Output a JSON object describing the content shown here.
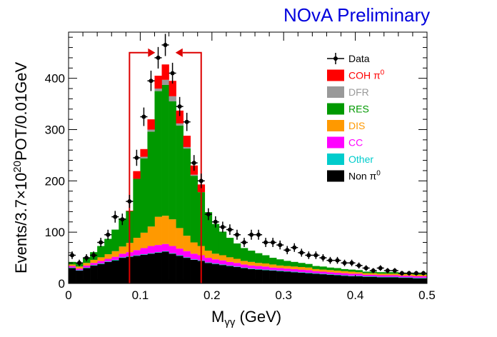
{
  "banner": "NOvA Preliminary",
  "chart_data": {
    "type": "bar",
    "subtype": "stacked_histogram_with_data_points",
    "xlabel": {
      "main": "M",
      "sub": "γγ",
      "units": " (GeV)"
    },
    "ylabel": {
      "pre": "Events/3.7",
      "times": "×",
      "base": "10",
      "exp": "20",
      "post": "POT/0.01GeV"
    },
    "xlim": [
      0,
      0.5
    ],
    "ylim": [
      0,
      490
    ],
    "xticks": [
      0,
      0.1,
      0.2,
      0.3,
      0.4,
      0.5
    ],
    "xtick_labels": [
      "0",
      "0.1",
      "0.2",
      "0.3",
      "0.4",
      "0.5"
    ],
    "yticks": [
      0,
      100,
      200,
      300,
      400
    ],
    "ytick_labels": [
      "0",
      "100",
      "200",
      "300",
      "400"
    ],
    "bin_width": 0.01,
    "bin_low_edges": [
      0,
      0.01,
      0.02,
      0.03,
      0.04,
      0.05,
      0.06,
      0.07,
      0.08,
      0.09,
      0.1,
      0.11,
      0.12,
      0.13,
      0.14,
      0.15,
      0.16,
      0.17,
      0.18,
      0.19,
      0.2,
      0.21,
      0.22,
      0.23,
      0.24,
      0.25,
      0.26,
      0.27,
      0.28,
      0.29,
      0.3,
      0.31,
      0.32,
      0.33,
      0.34,
      0.35,
      0.36,
      0.37,
      0.38,
      0.39,
      0.4,
      0.41,
      0.42,
      0.43,
      0.44,
      0.45,
      0.46,
      0.47,
      0.48,
      0.49
    ],
    "series": [
      {
        "name": "Non π0",
        "label": "Non π",
        "sup": "0",
        "color": "#000000",
        "text_color": "#000000",
        "values": [
          30,
          25,
          30,
          35,
          38,
          42,
          45,
          50,
          52,
          54,
          56,
          58,
          60,
          62,
          58,
          54,
          50,
          46,
          44,
          40,
          38,
          36,
          34,
          32,
          30,
          28,
          27,
          26,
          25,
          24,
          23,
          22,
          21,
          20,
          19,
          18,
          17,
          16,
          15,
          14,
          14,
          13,
          13,
          12,
          12,
          12,
          11,
          11,
          10,
          10
        ]
      },
      {
        "name": "Other",
        "label": "Other",
        "color": "#00cccc",
        "text_color": "#00cccc",
        "values": [
          1,
          1,
          1,
          1,
          1,
          1,
          1,
          1,
          1,
          1,
          1,
          1,
          1,
          1,
          1,
          1,
          1,
          1,
          1,
          1,
          1,
          1,
          1,
          1,
          1,
          1,
          1,
          1,
          1,
          1,
          1,
          1,
          1,
          1,
          1,
          1,
          1,
          1,
          1,
          1,
          1,
          1,
          1,
          1,
          1,
          1,
          1,
          1,
          1,
          1
        ]
      },
      {
        "name": "CC",
        "label": "CC",
        "color": "#ff00ff",
        "text_color": "#ff00ff",
        "values": [
          3,
          3,
          4,
          4,
          5,
          5,
          6,
          7,
          8,
          10,
          12,
          14,
          14,
          14,
          14,
          13,
          12,
          11,
          10,
          9,
          8,
          8,
          7,
          7,
          6,
          6,
          6,
          6,
          5,
          5,
          5,
          5,
          5,
          5,
          4,
          4,
          4,
          4,
          4,
          4,
          4,
          3,
          3,
          3,
          3,
          3,
          3,
          3,
          3,
          3
        ]
      },
      {
        "name": "DIS",
        "label": "DIS",
        "color": "#ff9900",
        "text_color": "#ff9900",
        "values": [
          3,
          4,
          5,
          6,
          7,
          9,
          11,
          14,
          18,
          24,
          30,
          38,
          55,
          55,
          52,
          40,
          30,
          22,
          18,
          14,
          11,
          10,
          9,
          8,
          7,
          7,
          6,
          6,
          6,
          5,
          5,
          5,
          5,
          5,
          4,
          4,
          4,
          4,
          4,
          4,
          3,
          3,
          3,
          3,
          3,
          3,
          3,
          3,
          3,
          3
        ]
      },
      {
        "name": "RES",
        "label": "RES",
        "color": "#009900",
        "text_color": "#009900",
        "values": [
          5,
          7,
          10,
          15,
          22,
          30,
          42,
          55,
          62,
          115,
          145,
          185,
          245,
          255,
          230,
          200,
          170,
          130,
          105,
          75,
          58,
          46,
          38,
          30,
          25,
          22,
          19,
          16,
          13,
          12,
          10,
          9,
          8,
          7,
          6,
          6,
          5,
          5,
          4,
          4,
          4,
          3,
          3,
          3,
          3,
          3,
          3,
          2,
          2,
          2
        ]
      },
      {
        "name": "DFR",
        "label": "DFR",
        "color": "#999999",
        "text_color": "#999999",
        "values": [
          0,
          0,
          0,
          0,
          0,
          0,
          0,
          0,
          0,
          0,
          3,
          4,
          5,
          10,
          10,
          4,
          3,
          2,
          0,
          0,
          0,
          0,
          0,
          0,
          0,
          0,
          0,
          0,
          0,
          0,
          0,
          0,
          0,
          0,
          0,
          0,
          0,
          0,
          0,
          0,
          0,
          0,
          0,
          0,
          0,
          0,
          0,
          0,
          0,
          0
        ]
      },
      {
        "name": "COH π0",
        "label": "COH π",
        "sup": "0",
        "color": "#ff0000",
        "text_color": "#ff0000",
        "values": [
          0,
          0,
          0,
          0,
          0,
          0,
          0,
          0,
          1,
          15,
          15,
          20,
          25,
          30,
          30,
          25,
          22,
          18,
          15,
          0,
          0,
          0,
          0,
          0,
          0,
          0,
          0,
          0,
          0,
          0,
          0,
          0,
          0,
          0,
          0,
          0,
          0,
          0,
          0,
          0,
          0,
          0,
          0,
          0,
          0,
          0,
          0,
          0,
          0,
          0
        ]
      }
    ],
    "data_points": {
      "name": "Data",
      "label": "Data",
      "color": "#000000",
      "x": [
        0.005,
        0.015,
        0.025,
        0.035,
        0.045,
        0.055,
        0.065,
        0.075,
        0.085,
        0.095,
        0.105,
        0.115,
        0.125,
        0.135,
        0.145,
        0.155,
        0.165,
        0.175,
        0.185,
        0.195,
        0.205,
        0.215,
        0.225,
        0.235,
        0.245,
        0.255,
        0.265,
        0.275,
        0.285,
        0.295,
        0.305,
        0.315,
        0.325,
        0.335,
        0.345,
        0.355,
        0.365,
        0.375,
        0.385,
        0.395,
        0.405,
        0.415,
        0.425,
        0.435,
        0.445,
        0.455,
        0.465,
        0.475,
        0.485,
        0.495
      ],
      "y": [
        55,
        40,
        50,
        55,
        80,
        95,
        130,
        125,
        160,
        245,
        325,
        395,
        440,
        465,
        410,
        345,
        315,
        235,
        200,
        135,
        120,
        110,
        105,
        95,
        80,
        95,
        95,
        80,
        80,
        75,
        65,
        70,
        60,
        55,
        55,
        50,
        45,
        45,
        40,
        40,
        35,
        30,
        25,
        30,
        25,
        25,
        20,
        20,
        20,
        20
      ]
    },
    "selection_cuts": {
      "lower": 0.085,
      "upper": 0.185,
      "color": "#dd0000",
      "top_value": 450
    },
    "legend_position": "top-right",
    "grid": false
  }
}
